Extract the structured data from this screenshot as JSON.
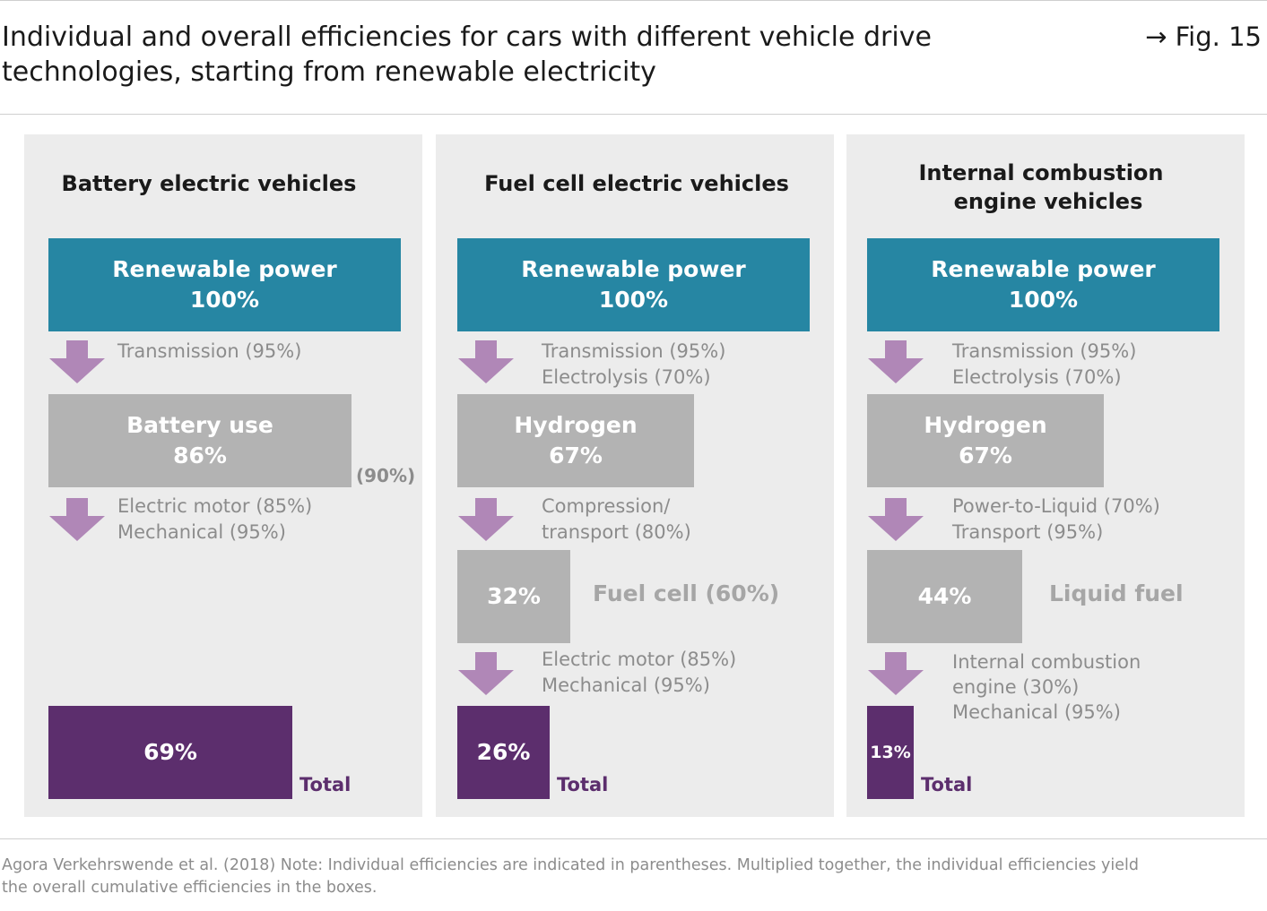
{
  "header": {
    "title_line1": "Individual and overall efficiencies for cars with different vehicle drive",
    "title_line2": "technologies, starting from renewable electricity",
    "fig_label": "→ Fig. 15"
  },
  "panels": {
    "bev": {
      "title": "Battery electric vehicles",
      "source": {
        "label": "Renewable power",
        "value": "100%"
      },
      "step1": [
        "Transmission (95%)"
      ],
      "intermediate": {
        "label": "Battery use",
        "value": "86%",
        "side_pct": "(90%)"
      },
      "step2": [
        "Electric motor  (85%)",
        "Mechanical (95%)"
      ],
      "total": {
        "value": "69%",
        "label": "Total"
      }
    },
    "fcev": {
      "title": "Fuel cell electric vehicles",
      "source": {
        "label": "Renewable power",
        "value": "100%"
      },
      "step1": [
        "Transmission (95%)",
        "Electrolysis (70%)"
      ],
      "intermediate": {
        "label": "Hydrogen",
        "value": "67%"
      },
      "step2": [
        "Compression/",
        "transport  (80%)"
      ],
      "stage3": {
        "value": "32%",
        "side_label": "Fuel cell (60%)"
      },
      "step3": [
        "Electric motor (85%)",
        "Mechanical (95%)"
      ],
      "total": {
        "value": "26%",
        "label": "Total"
      }
    },
    "icev": {
      "title_line1": "Internal combustion",
      "title_line2": "engine vehicles",
      "source": {
        "label": "Renewable power",
        "value": "100%"
      },
      "step1": [
        "Transmission (95%)",
        "Electrolysis (70%)"
      ],
      "intermediate": {
        "label": "Hydrogen",
        "value": "67%"
      },
      "step2": [
        "Power-to-Liquid (70%)",
        "Transport (95%)"
      ],
      "stage3": {
        "value": "44%",
        "side_label": "Liquid fuel"
      },
      "step3": [
        "Internal combustion",
        "engine (30%)",
        "Mechanical (95%)"
      ],
      "total": {
        "value": "13%",
        "label": "Total"
      }
    }
  },
  "footer": {
    "line1": "Agora Verkehrswende et al. (2018) Note: Individual efficiencies are indicated in parentheses. Multiplied together, the individual efficiencies yield",
    "line2": "the overall cumulative efficiencies in the boxes."
  },
  "colors": {
    "teal": "#2686a3",
    "gray": "#b3b3b3",
    "purple": "#5c2e6d",
    "arrow": "#b087b7",
    "panel_bg": "#ececec"
  }
}
